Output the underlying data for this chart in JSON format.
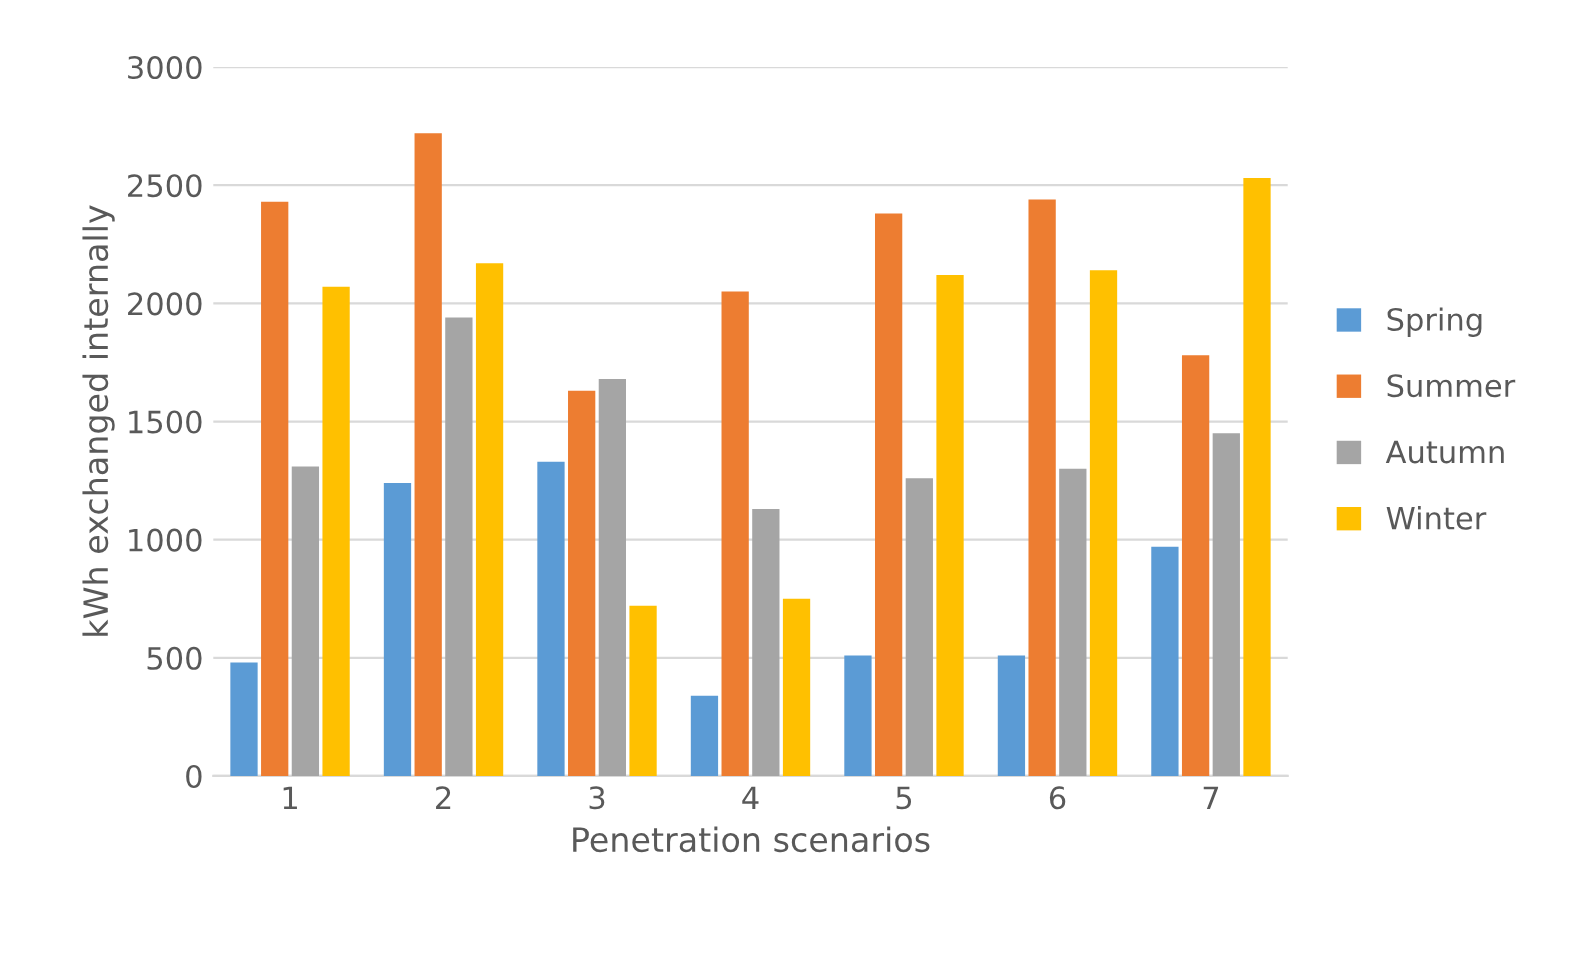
{
  "chart_data": {
    "type": "bar",
    "xlabel": "Penetration scenarios",
    "ylabel": "kWh exchanged internally",
    "categories": [
      "1",
      "2",
      "3",
      "4",
      "5",
      "6",
      "7"
    ],
    "series": [
      {
        "name": "Spring",
        "color": "#5b9bd5",
        "values": [
          480,
          1240,
          1330,
          340,
          510,
          510,
          970
        ]
      },
      {
        "name": "Summer",
        "color": "#ed7d31",
        "values": [
          2430,
          2720,
          1630,
          2050,
          2380,
          2440,
          1780
        ]
      },
      {
        "name": "Autumn",
        "color": "#a5a5a5",
        "values": [
          1310,
          1940,
          1680,
          1130,
          1260,
          1300,
          1450
        ]
      },
      {
        "name": "Winter",
        "color": "#ffc000",
        "values": [
          2070,
          2170,
          720,
          750,
          2120,
          2140,
          2530
        ]
      }
    ],
    "ylim": [
      0,
      3000
    ],
    "yticks": [
      0,
      500,
      1000,
      1500,
      2000,
      2500,
      3000
    ],
    "grid": "y",
    "legend": "right"
  }
}
